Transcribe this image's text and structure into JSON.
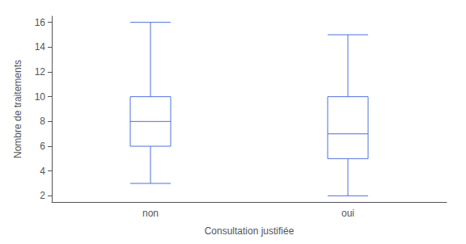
{
  "chart_data": {
    "type": "boxplot",
    "categories": [
      "non",
      "oui"
    ],
    "values": [
      {
        "whisker_low": 3,
        "q1": 6,
        "median": 8,
        "q3": 10,
        "whisker_high": 16
      },
      {
        "whisker_low": 2,
        "q1": 5,
        "median": 7,
        "q3": 10,
        "whisker_high": 15
      }
    ],
    "xlabel": "Consultation justifiée",
    "ylabel": "Nombre de traitements",
    "ylim": [
      1.5,
      16.5
    ],
    "yticks": [
      2,
      4,
      6,
      8,
      10,
      12,
      14,
      16
    ],
    "grid": false
  }
}
